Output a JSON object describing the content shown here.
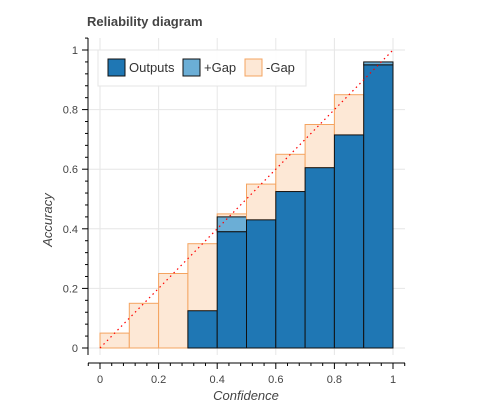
{
  "chart_data": {
    "type": "bar",
    "title": "Reliability diagram",
    "xlabel": "Confidence",
    "ylabel": "Accuracy",
    "xlim": [
      -0.04,
      1.04
    ],
    "ylim": [
      -0.02,
      1.04
    ],
    "x_ticks": [
      0,
      0.2,
      0.4,
      0.6,
      0.8,
      1
    ],
    "x_tick_labels": [
      "0",
      "0.2",
      "0.4",
      "0.6",
      "0.8",
      "1"
    ],
    "y_ticks": [
      0,
      0.2,
      0.4,
      0.6,
      0.8,
      1
    ],
    "y_tick_labels": [
      "0",
      "0.2",
      "0.4",
      "0.6",
      "0.8",
      "1"
    ],
    "bin_width": 0.1,
    "bins": [
      0,
      0.1,
      0.2,
      0.3,
      0.4,
      0.5,
      0.6,
      0.7,
      0.8,
      0.9
    ],
    "series": [
      {
        "name": "Outputs",
        "color": "#1f77b4",
        "values": [
          0,
          0,
          0,
          0.125,
          0.39,
          0.43,
          0.525,
          0.605,
          0.715,
          0.95
        ]
      },
      {
        "name": "+Gap",
        "color": "#6baed6",
        "values": [
          0,
          0,
          0,
          0,
          0.44,
          0,
          0,
          0,
          0,
          0.96
        ]
      },
      {
        "name": "-Gap",
        "color": "#fde8d6",
        "edge_color": "#f4a460",
        "values": [
          0.05,
          0.15,
          0.25,
          0.35,
          0.45,
          0.55,
          0.65,
          0.75,
          0.85,
          0.95
        ]
      }
    ],
    "perfect_calibration": {
      "color": "#ff0000",
      "style": "dotted",
      "from": [
        0,
        0
      ],
      "to": [
        1,
        1
      ]
    },
    "legend_position": "top-left",
    "grid": true
  }
}
